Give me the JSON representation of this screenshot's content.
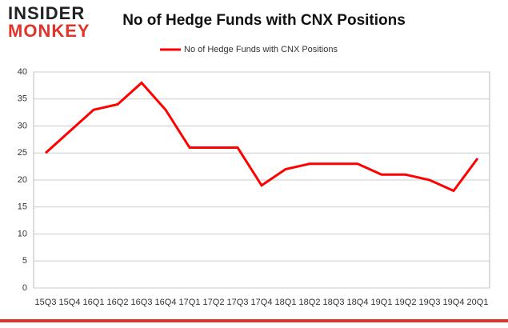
{
  "logo": {
    "line1": "INSIDER",
    "line2": "MONKEY"
  },
  "chart_data": {
    "type": "line",
    "title": "No of Hedge Funds with CNX Positions",
    "categories": [
      "15Q3",
      "15Q4",
      "16Q1",
      "16Q2",
      "16Q3",
      "16Q4",
      "17Q1",
      "17Q2",
      "17Q3",
      "17Q4",
      "18Q1",
      "18Q2",
      "18Q3",
      "18Q4",
      "19Q1",
      "19Q2",
      "19Q3",
      "19Q4",
      "20Q1"
    ],
    "series": [
      {
        "name": "No of Hedge Funds with CNX Positions",
        "color": "#ff0000",
        "values": [
          25,
          29,
          33,
          34,
          38,
          33,
          26,
          26,
          26,
          19,
          22,
          23,
          23,
          23,
          21,
          21,
          20,
          18,
          24
        ]
      }
    ],
    "ylim": [
      0,
      40
    ],
    "yticks": [
      0,
      5,
      10,
      15,
      20,
      25,
      30,
      35,
      40
    ],
    "grid": true,
    "legend": "top"
  }
}
